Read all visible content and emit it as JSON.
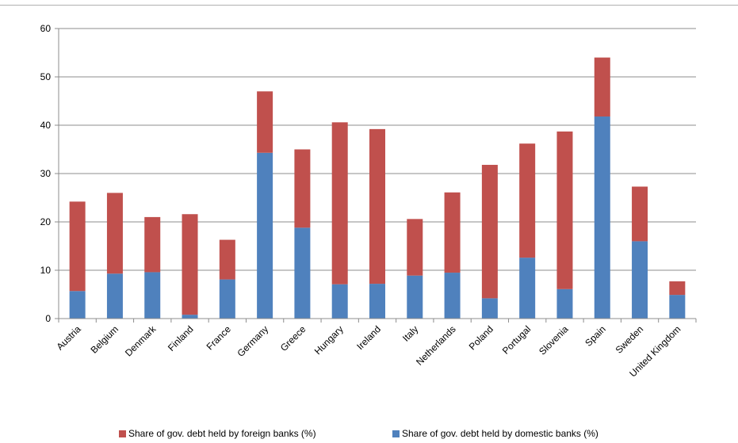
{
  "chart_data": {
    "type": "bar",
    "stacked": true,
    "categories": [
      "Austria",
      "Belgium",
      "Denmark",
      "Finland",
      "France",
      "Germany",
      "Greece",
      "Hungary",
      "Ireland",
      "Italy",
      "Netherlands",
      "Poland",
      "Portugal",
      "Slovenia",
      "Spain",
      "Sweden",
      "United Kingdom"
    ],
    "series": [
      {
        "name": "Share of gov. debt held by domestic banks (%)",
        "color": "#4f81bd",
        "values": [
          5.7,
          9.3,
          9.6,
          0.8,
          8.1,
          34.3,
          18.8,
          7.1,
          7.2,
          8.9,
          9.5,
          4.2,
          12.6,
          6.1,
          41.8,
          16.0,
          4.9
        ]
      },
      {
        "name": "Share of gov. debt held by foreign banks (%)",
        "color": "#c0504d",
        "values": [
          18.5,
          16.7,
          11.4,
          20.8,
          8.2,
          12.7,
          16.2,
          33.5,
          32.0,
          11.7,
          16.6,
          27.6,
          23.6,
          32.6,
          12.2,
          11.3,
          2.8
        ]
      }
    ],
    "ylim": [
      0,
      60
    ],
    "yticks": [
      0,
      10,
      20,
      30,
      40,
      50,
      60
    ],
    "grid": true,
    "legend_position": "bottom",
    "legend_order": [
      "Share of gov. debt held by foreign banks (%)",
      "Share of gov. debt held by domestic banks (%)"
    ],
    "title": "",
    "xlabel": "",
    "ylabel": ""
  }
}
